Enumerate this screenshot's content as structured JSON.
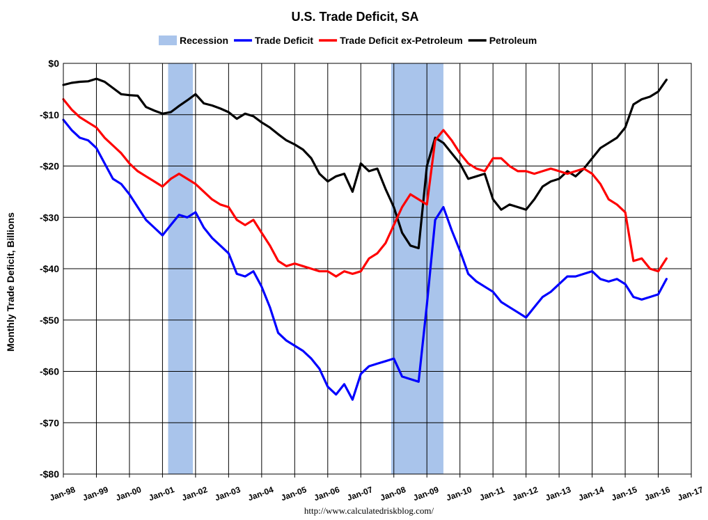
{
  "chart_data": {
    "type": "line",
    "title": "U.S. Trade Deficit, SA",
    "ylabel": "Monthly Trade Deficit, Billions",
    "xlabel": "",
    "source": "http://www.calculatedriskblog.com/",
    "xlim": [
      1998.0,
      2017.0
    ],
    "ylim": [
      -80,
      0
    ],
    "y_ticks": [
      {
        "value": 0,
        "label": "$0"
      },
      {
        "value": -10,
        "label": "-$10"
      },
      {
        "value": -20,
        "label": "-$20"
      },
      {
        "value": -30,
        "label": "-$30"
      },
      {
        "value": -40,
        "label": "-$40"
      },
      {
        "value": -50,
        "label": "-$50"
      },
      {
        "value": -60,
        "label": "-$60"
      },
      {
        "value": -70,
        "label": "-$70"
      },
      {
        "value": -80,
        "label": "-$80"
      }
    ],
    "x_ticks": [
      {
        "value": 1998,
        "label": "Jan-98"
      },
      {
        "value": 1999,
        "label": "Jan-99"
      },
      {
        "value": 2000,
        "label": "Jan-00"
      },
      {
        "value": 2001,
        "label": "Jan-01"
      },
      {
        "value": 2002,
        "label": "Jan-02"
      },
      {
        "value": 2003,
        "label": "Jan-03"
      },
      {
        "value": 2004,
        "label": "Jan-04"
      },
      {
        "value": 2005,
        "label": "Jan-05"
      },
      {
        "value": 2006,
        "label": "Jan-06"
      },
      {
        "value": 2007,
        "label": "Jan-07"
      },
      {
        "value": 2008,
        "label": "Jan-08"
      },
      {
        "value": 2009,
        "label": "Jan-09"
      },
      {
        "value": 2010,
        "label": "Jan-10"
      },
      {
        "value": 2011,
        "label": "Jan-11"
      },
      {
        "value": 2012,
        "label": "Jan-12"
      },
      {
        "value": 2013,
        "label": "Jan-13"
      },
      {
        "value": 2014,
        "label": "Jan-14"
      },
      {
        "value": 2015,
        "label": "Jan-15"
      },
      {
        "value": 2016,
        "label": "Jan-16"
      },
      {
        "value": 2017,
        "label": "Jan-17"
      }
    ],
    "grid": true,
    "legend_position": "top-center",
    "recessions": [
      {
        "start": 2001.17,
        "end": 2001.92
      },
      {
        "start": 2007.92,
        "end": 2009.5
      }
    ],
    "legend": [
      {
        "name": "Recession",
        "kind": "area",
        "color": "#A9C4EB"
      },
      {
        "name": "Trade Deficit",
        "kind": "line",
        "color": "#0000FF"
      },
      {
        "name": "Trade Deficit ex-Petroleum",
        "kind": "line",
        "color": "#FF0000"
      },
      {
        "name": "Petroleum",
        "kind": "line",
        "color": "#000000"
      }
    ],
    "series": [
      {
        "name": "Petroleum",
        "color": "#000000",
        "points": [
          [
            1998.0,
            -4.2
          ],
          [
            1998.25,
            -3.8
          ],
          [
            1998.5,
            -3.6
          ],
          [
            1998.75,
            -3.5
          ],
          [
            1999.0,
            -3.0
          ],
          [
            1999.25,
            -3.6
          ],
          [
            1999.5,
            -4.8
          ],
          [
            1999.75,
            -6.0
          ],
          [
            2000.0,
            -6.2
          ],
          [
            2000.25,
            -6.3
          ],
          [
            2000.5,
            -8.5
          ],
          [
            2000.75,
            -9.2
          ],
          [
            2001.0,
            -9.8
          ],
          [
            2001.25,
            -9.5
          ],
          [
            2001.5,
            -8.3
          ],
          [
            2001.75,
            -7.2
          ],
          [
            2002.0,
            -6.0
          ],
          [
            2002.25,
            -7.8
          ],
          [
            2002.5,
            -8.2
          ],
          [
            2002.75,
            -8.8
          ],
          [
            2003.0,
            -9.5
          ],
          [
            2003.25,
            -10.8
          ],
          [
            2003.5,
            -9.8
          ],
          [
            2003.75,
            -10.3
          ],
          [
            2004.0,
            -11.5
          ],
          [
            2004.25,
            -12.5
          ],
          [
            2004.5,
            -13.8
          ],
          [
            2004.75,
            -15.0
          ],
          [
            2005.0,
            -15.8
          ],
          [
            2005.25,
            -16.8
          ],
          [
            2005.5,
            -18.5
          ],
          [
            2005.75,
            -21.5
          ],
          [
            2006.0,
            -23.0
          ],
          [
            2006.25,
            -22.0
          ],
          [
            2006.5,
            -21.5
          ],
          [
            2006.75,
            -25.0
          ],
          [
            2007.0,
            -19.5
          ],
          [
            2007.25,
            -21.0
          ],
          [
            2007.5,
            -20.5
          ],
          [
            2007.75,
            -24.5
          ],
          [
            2008.0,
            -28.0
          ],
          [
            2008.25,
            -33.0
          ],
          [
            2008.5,
            -35.5
          ],
          [
            2008.75,
            -36.0
          ],
          [
            2009.0,
            -20.0
          ],
          [
            2009.25,
            -14.5
          ],
          [
            2009.5,
            -15.5
          ],
          [
            2009.75,
            -17.5
          ],
          [
            2010.0,
            -19.5
          ],
          [
            2010.25,
            -22.5
          ],
          [
            2010.5,
            -22.0
          ],
          [
            2010.75,
            -21.5
          ],
          [
            2011.0,
            -26.5
          ],
          [
            2011.25,
            -28.5
          ],
          [
            2011.5,
            -27.5
          ],
          [
            2011.75,
            -28.0
          ],
          [
            2012.0,
            -28.5
          ],
          [
            2012.25,
            -26.5
          ],
          [
            2012.5,
            -24.0
          ],
          [
            2012.75,
            -23.0
          ],
          [
            2013.0,
            -22.5
          ],
          [
            2013.25,
            -21.0
          ],
          [
            2013.5,
            -22.0
          ],
          [
            2013.75,
            -20.5
          ],
          [
            2014.0,
            -18.5
          ],
          [
            2014.25,
            -16.5
          ],
          [
            2014.5,
            -15.5
          ],
          [
            2014.75,
            -14.5
          ],
          [
            2015.0,
            -12.5
          ],
          [
            2015.25,
            -8.0
          ],
          [
            2015.5,
            -7.0
          ],
          [
            2015.75,
            -6.5
          ],
          [
            2016.0,
            -5.5
          ],
          [
            2016.25,
            -3.2
          ]
        ]
      },
      {
        "name": "Trade Deficit ex-Petroleum",
        "color": "#FF0000",
        "points": [
          [
            1998.0,
            -7.0
          ],
          [
            1998.25,
            -9.0
          ],
          [
            1998.5,
            -10.5
          ],
          [
            1998.75,
            -11.5
          ],
          [
            1999.0,
            -12.5
          ],
          [
            1999.25,
            -14.5
          ],
          [
            1999.5,
            -16.0
          ],
          [
            1999.75,
            -17.5
          ],
          [
            2000.0,
            -19.5
          ],
          [
            2000.25,
            -21.0
          ],
          [
            2000.5,
            -22.0
          ],
          [
            2000.75,
            -23.0
          ],
          [
            2001.0,
            -24.0
          ],
          [
            2001.25,
            -22.5
          ],
          [
            2001.5,
            -21.5
          ],
          [
            2001.75,
            -22.5
          ],
          [
            2002.0,
            -23.5
          ],
          [
            2002.25,
            -25.0
          ],
          [
            2002.5,
            -26.5
          ],
          [
            2002.75,
            -27.5
          ],
          [
            2003.0,
            -28.0
          ],
          [
            2003.25,
            -30.5
          ],
          [
            2003.5,
            -31.5
          ],
          [
            2003.75,
            -30.5
          ],
          [
            2004.0,
            -33.0
          ],
          [
            2004.25,
            -35.5
          ],
          [
            2004.5,
            -38.5
          ],
          [
            2004.75,
            -39.5
          ],
          [
            2005.0,
            -39.0
          ],
          [
            2005.25,
            -39.5
          ],
          [
            2005.5,
            -40.0
          ],
          [
            2005.75,
            -40.5
          ],
          [
            2006.0,
            -40.5
          ],
          [
            2006.25,
            -41.5
          ],
          [
            2006.5,
            -40.5
          ],
          [
            2006.75,
            -41.0
          ],
          [
            2007.0,
            -40.5
          ],
          [
            2007.25,
            -38.0
          ],
          [
            2007.5,
            -37.0
          ],
          [
            2007.75,
            -35.0
          ],
          [
            2008.0,
            -31.5
          ],
          [
            2008.25,
            -28.0
          ],
          [
            2008.5,
            -25.5
          ],
          [
            2008.75,
            -26.5
          ],
          [
            2009.0,
            -27.5
          ],
          [
            2009.25,
            -15.0
          ],
          [
            2009.5,
            -13.0
          ],
          [
            2009.75,
            -15.0
          ],
          [
            2010.0,
            -17.5
          ],
          [
            2010.25,
            -19.5
          ],
          [
            2010.5,
            -20.5
          ],
          [
            2010.75,
            -21.0
          ],
          [
            2011.0,
            -18.5
          ],
          [
            2011.25,
            -18.5
          ],
          [
            2011.5,
            -20.0
          ],
          [
            2011.75,
            -21.0
          ],
          [
            2012.0,
            -21.0
          ],
          [
            2012.25,
            -21.5
          ],
          [
            2012.5,
            -21.0
          ],
          [
            2012.75,
            -20.5
          ],
          [
            2013.0,
            -21.0
          ],
          [
            2013.25,
            -21.5
          ],
          [
            2013.5,
            -21.0
          ],
          [
            2013.75,
            -20.5
          ],
          [
            2014.0,
            -21.5
          ],
          [
            2014.25,
            -23.5
          ],
          [
            2014.5,
            -26.5
          ],
          [
            2014.75,
            -27.5
          ],
          [
            2015.0,
            -29.0
          ],
          [
            2015.25,
            -38.5
          ],
          [
            2015.5,
            -38.0
          ],
          [
            2015.75,
            -40.0
          ],
          [
            2016.0,
            -40.5
          ],
          [
            2016.25,
            -38.0
          ]
        ]
      },
      {
        "name": "Trade Deficit",
        "color": "#0000FF",
        "points": [
          [
            1998.0,
            -11.0
          ],
          [
            1998.25,
            -13.0
          ],
          [
            1998.5,
            -14.5
          ],
          [
            1998.75,
            -15.0
          ],
          [
            1999.0,
            -16.5
          ],
          [
            1999.25,
            -19.5
          ],
          [
            1999.5,
            -22.5
          ],
          [
            1999.75,
            -23.5
          ],
          [
            2000.0,
            -25.5
          ],
          [
            2000.25,
            -28.0
          ],
          [
            2000.5,
            -30.5
          ],
          [
            2000.75,
            -32.0
          ],
          [
            2001.0,
            -33.5
          ],
          [
            2001.25,
            -31.5
          ],
          [
            2001.5,
            -29.5
          ],
          [
            2001.75,
            -30.0
          ],
          [
            2002.0,
            -29.0
          ],
          [
            2002.25,
            -32.0
          ],
          [
            2002.5,
            -34.0
          ],
          [
            2002.75,
            -35.5
          ],
          [
            2003.0,
            -37.0
          ],
          [
            2003.25,
            -41.0
          ],
          [
            2003.5,
            -41.5
          ],
          [
            2003.75,
            -40.5
          ],
          [
            2004.0,
            -43.5
          ],
          [
            2004.25,
            -47.5
          ],
          [
            2004.5,
            -52.5
          ],
          [
            2004.75,
            -54.0
          ],
          [
            2005.0,
            -55.0
          ],
          [
            2005.25,
            -56.0
          ],
          [
            2005.5,
            -57.5
          ],
          [
            2005.75,
            -59.5
          ],
          [
            2006.0,
            -63.0
          ],
          [
            2006.25,
            -64.5
          ],
          [
            2006.5,
            -62.5
          ],
          [
            2006.75,
            -65.5
          ],
          [
            2007.0,
            -60.5
          ],
          [
            2007.25,
            -59.0
          ],
          [
            2007.5,
            -58.5
          ],
          [
            2007.75,
            -58.0
          ],
          [
            2008.0,
            -57.5
          ],
          [
            2008.25,
            -61.0
          ],
          [
            2008.5,
            -61.5
          ],
          [
            2008.75,
            -62.0
          ],
          [
            2009.0,
            -47.0
          ],
          [
            2009.25,
            -30.5
          ],
          [
            2009.5,
            -28.0
          ],
          [
            2009.75,
            -32.5
          ],
          [
            2010.0,
            -36.5
          ],
          [
            2010.25,
            -41.0
          ],
          [
            2010.5,
            -42.5
          ],
          [
            2010.75,
            -43.5
          ],
          [
            2011.0,
            -44.5
          ],
          [
            2011.25,
            -46.5
          ],
          [
            2011.5,
            -47.5
          ],
          [
            2011.75,
            -48.5
          ],
          [
            2012.0,
            -49.5
          ],
          [
            2012.25,
            -47.5
          ],
          [
            2012.5,
            -45.5
          ],
          [
            2012.75,
            -44.5
          ],
          [
            2013.0,
            -43.0
          ],
          [
            2013.25,
            -41.5
          ],
          [
            2013.5,
            -41.5
          ],
          [
            2013.75,
            -41.0
          ],
          [
            2014.0,
            -40.5
          ],
          [
            2014.25,
            -42.0
          ],
          [
            2014.5,
            -42.5
          ],
          [
            2014.75,
            -42.0
          ],
          [
            2015.0,
            -43.0
          ],
          [
            2015.25,
            -45.5
          ],
          [
            2015.5,
            -46.0
          ],
          [
            2015.75,
            -45.5
          ],
          [
            2016.0,
            -45.0
          ],
          [
            2016.25,
            -42.0
          ]
        ]
      }
    ]
  }
}
